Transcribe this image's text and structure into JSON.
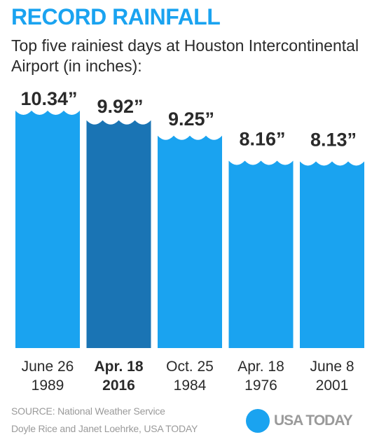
{
  "header": {
    "title": "RECORD RAINFALL",
    "subtitle": "Top five rainiest days at Houston Intercontinental Airport (in inches):"
  },
  "chart_data": {
    "type": "bar",
    "title": "RECORD RAINFALL",
    "subtitle": "Top five rainiest days at Houston Intercontinental Airport (in inches):",
    "categories": [
      {
        "line1": "June 26",
        "line2": "1989"
      },
      {
        "line1": "Apr. 18",
        "line2": "2016"
      },
      {
        "line1": "Oct. 25",
        "line2": "1984"
      },
      {
        "line1": "Apr. 18",
        "line2": "1976"
      },
      {
        "line1": "June 8",
        "line2": "2001"
      }
    ],
    "values": [
      10.34,
      9.92,
      9.25,
      8.16,
      8.13
    ],
    "value_labels": [
      "10.34”",
      "9.92”",
      "9.25”",
      "8.16”",
      "8.13”"
    ],
    "highlight_index": 1,
    "colors": {
      "bar": "#1aa3f0",
      "highlight": "#1a74b4"
    },
    "ylim": [
      0,
      10.34
    ],
    "grid": false
  },
  "footer": {
    "source": "SOURCE:  National Weather Service",
    "credit": "Doyle Rice and Janet Loehrke, USA TODAY",
    "logo_text": "USA TODAY"
  }
}
